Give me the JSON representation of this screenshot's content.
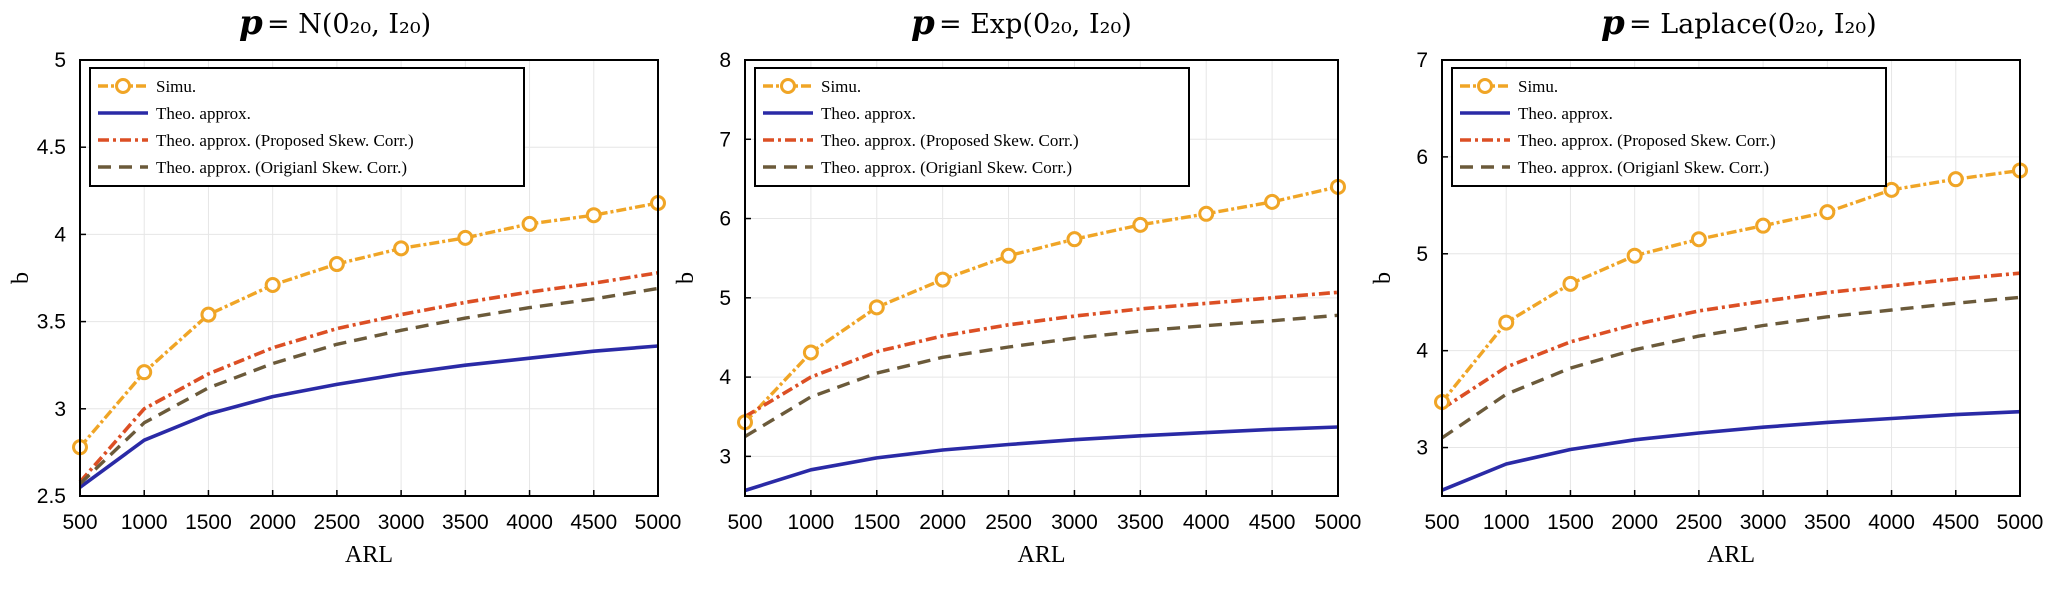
{
  "colors": {
    "simu": "#f0a526",
    "theo": "#2a2aa6",
    "proposed": "#dc4f24",
    "original": "#6b5a3a",
    "grid": "#e6e6e6"
  },
  "legend_labels": [
    "Simu.",
    "Theo. approx.",
    "Theo. approx. (Proposed Skew. Corr.)",
    "Theo. approx. (Origianl Skew. Corr.)"
  ],
  "chart_data": [
    {
      "type": "line",
      "title_symbol": "p",
      "title": "= N(0₂₀, I₂₀)",
      "xlabel": "ARL",
      "ylabel": "b",
      "xlim": [
        500,
        5000
      ],
      "ylim": [
        2.5,
        5
      ],
      "xticks": [
        500,
        1000,
        1500,
        2000,
        2500,
        3000,
        3500,
        4000,
        4500,
        5000
      ],
      "yticks": [
        2.5,
        3,
        3.5,
        4,
        4.5,
        5
      ],
      "ytick_labels": [
        "2.5",
        "3",
        "3.5",
        "4",
        "4.5",
        "5"
      ],
      "grid": true,
      "legend_position": "top-left",
      "x": [
        500,
        1000,
        1500,
        2000,
        2500,
        3000,
        3500,
        4000,
        4500,
        5000
      ],
      "series": [
        {
          "name": "Simu.",
          "values": [
            2.78,
            3.21,
            3.54,
            3.71,
            3.83,
            3.92,
            3.98,
            4.06,
            4.11,
            4.18
          ]
        },
        {
          "name": "Theo. approx.",
          "values": [
            2.55,
            2.82,
            2.97,
            3.07,
            3.14,
            3.2,
            3.25,
            3.29,
            3.33,
            3.36
          ]
        },
        {
          "name": "Theo. approx. (Proposed Skew. Corr.)",
          "values": [
            2.58,
            3.0,
            3.2,
            3.35,
            3.46,
            3.54,
            3.61,
            3.67,
            3.72,
            3.78
          ]
        },
        {
          "name": "Theo. approx. (Origianl Skew. Corr.)",
          "values": [
            2.57,
            2.92,
            3.12,
            3.26,
            3.37,
            3.45,
            3.52,
            3.58,
            3.63,
            3.69
          ]
        }
      ]
    },
    {
      "type": "line",
      "title_symbol": "p",
      "title": "= Exp(0₂₀, I₂₀)",
      "xlabel": "ARL",
      "ylabel": "b",
      "xlim": [
        500,
        5000
      ],
      "ylim": [
        2.5,
        8
      ],
      "xticks": [
        500,
        1000,
        1500,
        2000,
        2500,
        3000,
        3500,
        4000,
        4500,
        5000
      ],
      "yticks": [
        3,
        4,
        5,
        6,
        7,
        8
      ],
      "ytick_labels": [
        "3",
        "4",
        "5",
        "6",
        "7",
        "8"
      ],
      "grid": true,
      "legend_position": "top-left",
      "x": [
        500,
        1000,
        1500,
        2000,
        2500,
        3000,
        3500,
        4000,
        4500,
        5000
      ],
      "series": [
        {
          "name": "Simu.",
          "values": [
            3.43,
            4.31,
            4.88,
            5.23,
            5.53,
            5.74,
            5.92,
            6.06,
            6.21,
            6.4
          ]
        },
        {
          "name": "Theo. approx.",
          "values": [
            2.57,
            2.83,
            2.98,
            3.08,
            3.15,
            3.21,
            3.26,
            3.3,
            3.34,
            3.37
          ]
        },
        {
          "name": "Theo. approx. (Proposed Skew. Corr.)",
          "values": [
            3.5,
            4.0,
            4.32,
            4.52,
            4.66,
            4.77,
            4.86,
            4.93,
            5.0,
            5.07
          ]
        },
        {
          "name": "Theo. approx. (Origianl Skew. Corr.)",
          "values": [
            3.25,
            3.75,
            4.05,
            4.25,
            4.38,
            4.49,
            4.58,
            4.65,
            4.71,
            4.78
          ]
        }
      ]
    },
    {
      "type": "line",
      "title_symbol": "p",
      "title": "= Laplace(0₂₀, I₂₀)",
      "xlabel": "ARL",
      "ylabel": "b",
      "xlim": [
        500,
        5000
      ],
      "ylim": [
        2.5,
        7
      ],
      "xticks": [
        500,
        1000,
        1500,
        2000,
        2500,
        3000,
        3500,
        4000,
        4500,
        5000
      ],
      "yticks": [
        3,
        4,
        5,
        6,
        7
      ],
      "ytick_labels": [
        "3",
        "4",
        "5",
        "6",
        "7"
      ],
      "grid": true,
      "legend_position": "top-left",
      "x": [
        500,
        1000,
        1500,
        2000,
        2500,
        3000,
        3500,
        4000,
        4500,
        5000
      ],
      "series": [
        {
          "name": "Simu.",
          "values": [
            3.47,
            4.29,
            4.69,
            4.98,
            5.15,
            5.29,
            5.43,
            5.66,
            5.77,
            5.86
          ]
        },
        {
          "name": "Theo. approx.",
          "values": [
            2.56,
            2.83,
            2.98,
            3.08,
            3.15,
            3.21,
            3.26,
            3.3,
            3.34,
            3.37
          ]
        },
        {
          "name": "Theo. approx. (Proposed Skew. Corr.)",
          "values": [
            3.4,
            3.83,
            4.09,
            4.27,
            4.41,
            4.51,
            4.6,
            4.67,
            4.74,
            4.8
          ]
        },
        {
          "name": "Theo. approx. (Origianl Skew. Corr.)",
          "values": [
            3.1,
            3.55,
            3.82,
            4.01,
            4.15,
            4.26,
            4.35,
            4.42,
            4.49,
            4.55
          ]
        }
      ]
    }
  ]
}
